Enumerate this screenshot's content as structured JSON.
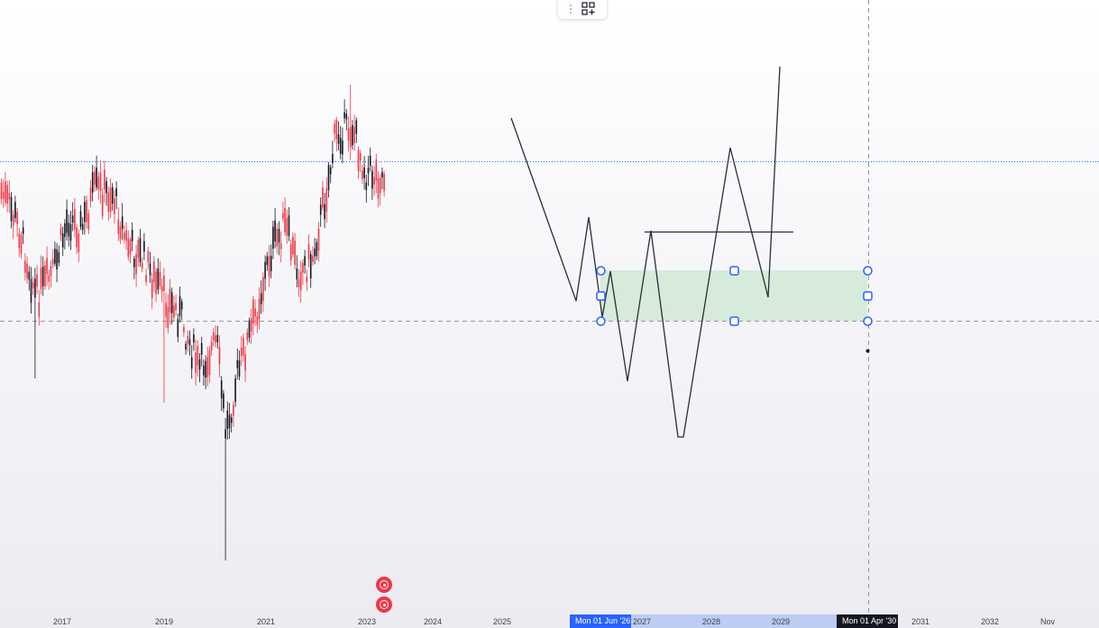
{
  "toolbar": {
    "icons": [
      "drag-handle-icon",
      "add-to-grid-icon"
    ]
  },
  "x_axis": {
    "ticks": [
      "2017",
      "2019",
      "2021",
      "2023",
      "2024",
      "2025",
      "2027",
      "2028",
      "2029",
      "2031",
      "2032",
      "Nov"
    ],
    "range_start_label": "Mon 01 Jun '26",
    "range_end_label": "Mon 01 Apr '30"
  },
  "alerts": [
    "alert-icon",
    "alert-icon"
  ],
  "colors": {
    "candle_up": "#131722",
    "candle_down": "#f23645",
    "zone_fill": "#d3ead6",
    "handle": "#2962ff",
    "crosshair": "#9598a1",
    "price_line": "#2962ff"
  }
}
